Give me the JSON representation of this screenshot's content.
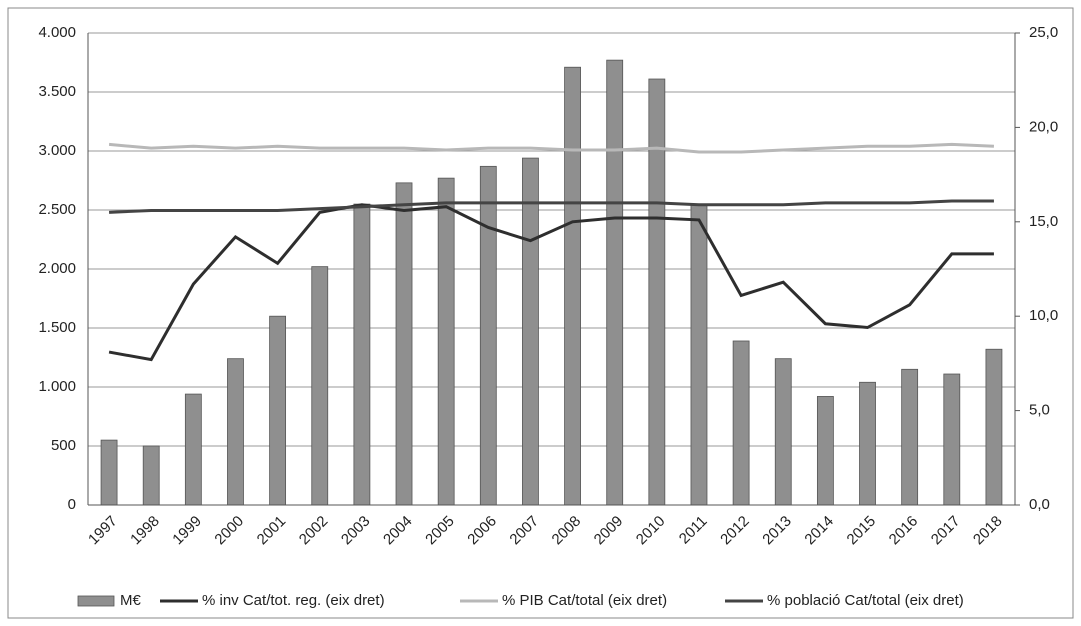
{
  "chart_data": {
    "type": "bar",
    "categories": [
      "1997",
      "1998",
      "1999",
      "2000",
      "2001",
      "2002",
      "2003",
      "2004",
      "2005",
      "2006",
      "2007",
      "2008",
      "2009",
      "2010",
      "2011",
      "2012",
      "2013",
      "2014",
      "2015",
      "2016",
      "2017",
      "2018"
    ],
    "series": [
      {
        "name": "M€",
        "type": "bar",
        "color": "#8f8f8f",
        "values": [
          550,
          500,
          940,
          1240,
          1600,
          2020,
          2550,
          2730,
          2770,
          2870,
          2940,
          3710,
          3770,
          3610,
          2550,
          1390,
          1240,
          920,
          1040,
          1150,
          1110,
          1320
        ]
      },
      {
        "name": "% inv Cat/tot. reg. (eix dret)",
        "type": "line",
        "axis": "y2",
        "color": "#2e2e2e",
        "values": [
          8.1,
          7.7,
          11.7,
          14.2,
          12.8,
          15.5,
          15.9,
          15.6,
          15.8,
          14.7,
          14.0,
          15.0,
          15.2,
          15.2,
          15.1,
          11.1,
          11.8,
          9.6,
          9.4,
          10.6,
          13.3,
          13.3
        ]
      },
      {
        "name": "% PIB Cat/total (eix dret)",
        "type": "line",
        "axis": "y2",
        "color": "#b8b8b8",
        "values": [
          19.1,
          18.9,
          19.0,
          18.9,
          19.0,
          18.9,
          18.9,
          18.9,
          18.8,
          18.9,
          18.9,
          18.8,
          18.8,
          18.9,
          18.7,
          18.7,
          18.8,
          18.9,
          19.0,
          19.0,
          19.1,
          19.0
        ]
      },
      {
        "name": "% població Cat/total (eix dret)",
        "type": "line",
        "axis": "y2",
        "color": "#444444",
        "values": [
          15.5,
          15.6,
          15.6,
          15.6,
          15.6,
          15.7,
          15.8,
          15.9,
          16.0,
          16.0,
          16.0,
          16.0,
          16.0,
          16.0,
          15.9,
          15.9,
          15.9,
          16.0,
          16.0,
          16.0,
          16.1,
          16.1
        ]
      }
    ],
    "ylim": [
      0,
      4000
    ],
    "yticks": [
      0,
      500,
      {
        "value": 1000,
        "label": "1.000"
      },
      {
        "value": 1500,
        "label": "1.500"
      },
      {
        "value": 2000,
        "label": "2.000"
      },
      {
        "value": 2500,
        "label": "2.500"
      },
      {
        "value": 3000,
        "label": "3.000"
      },
      {
        "value": 3500,
        "label": "3.500"
      },
      {
        "value": 4000,
        "label": "4.000"
      }
    ],
    "y2lim": [
      0,
      25
    ],
    "y2ticks": [
      {
        "value": 0,
        "label": "0,0"
      },
      {
        "value": 5,
        "label": "5,0"
      },
      {
        "value": 10,
        "label": "10,0"
      },
      {
        "value": 15,
        "label": "15,0"
      },
      {
        "value": 20,
        "label": "20,0"
      },
      {
        "value": 25,
        "label": "25,0"
      }
    ],
    "grid": true,
    "legend": "bottom"
  }
}
